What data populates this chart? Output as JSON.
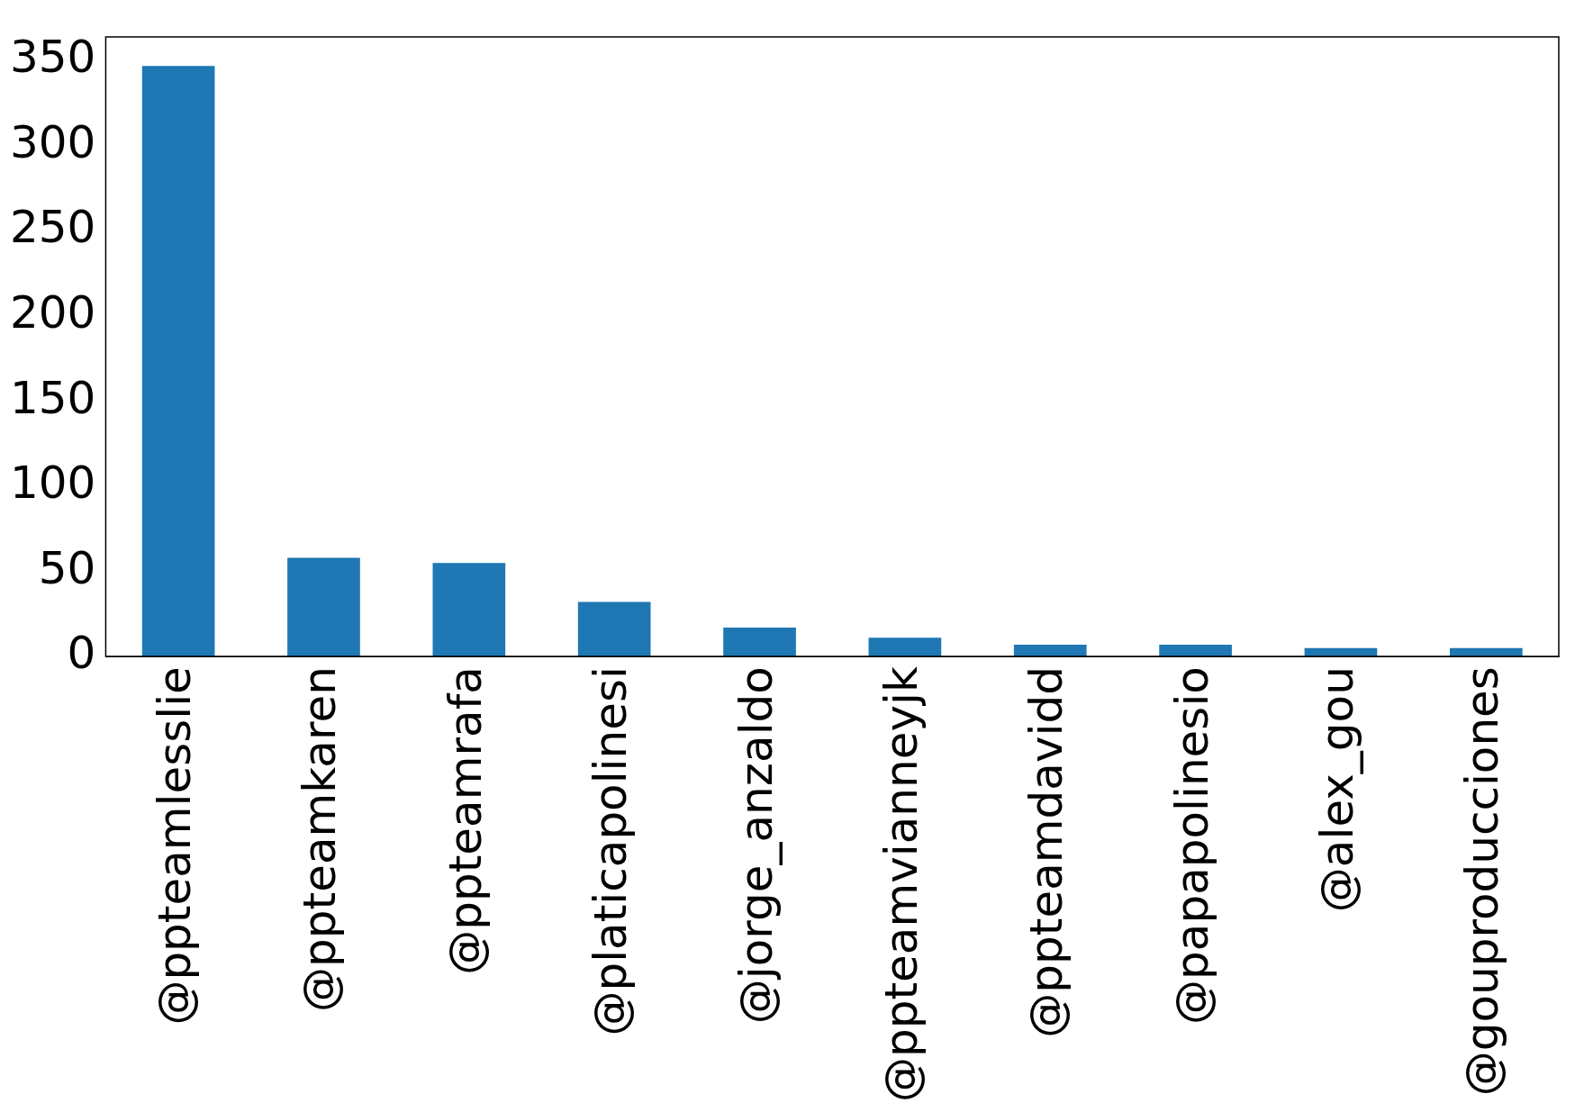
{
  "chart_data": {
    "type": "bar",
    "categories": [
      "@ppteamlesslie",
      "@ppteamkaren",
      "@ppteamrafa",
      "@platicapolinesi",
      "@jorge_anzaldo",
      "@ppteamvianneyjk",
      "@ppteamdavidd",
      "@papapolinesio",
      "@alex_gou",
      "@gouproducciones"
    ],
    "values": [
      347,
      58,
      55,
      32,
      17,
      11,
      7,
      7,
      5,
      5
    ],
    "color": "#1f77b4",
    "ylim": [
      0,
      364
    ],
    "yticks": [
      0,
      50,
      100,
      150,
      200,
      250,
      300,
      350
    ],
    "grid": false,
    "legend": false
  }
}
